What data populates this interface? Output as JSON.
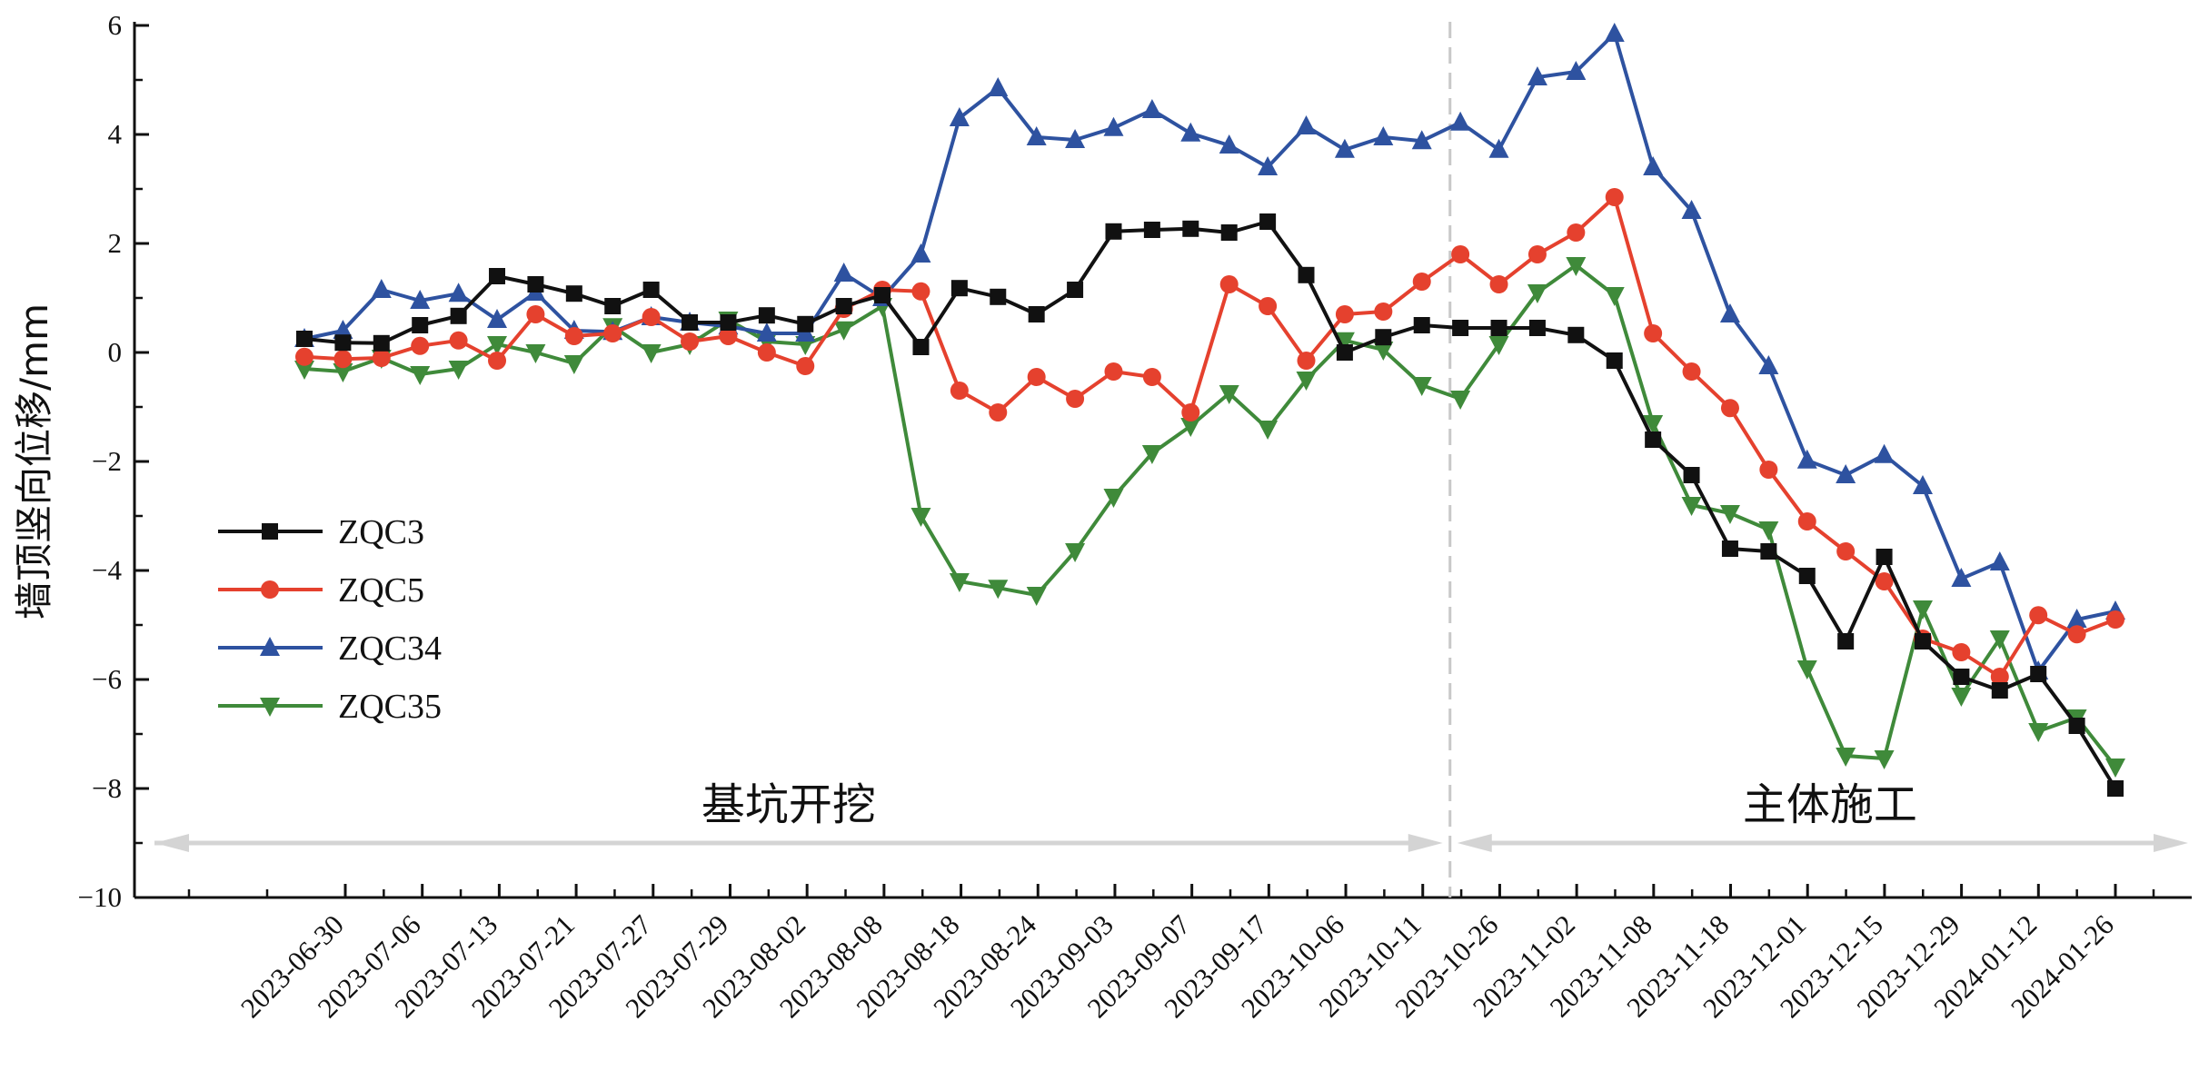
{
  "chart_data": {
    "type": "line",
    "ylabel": "墙顶竖向位移/mm",
    "ylim": [
      -10,
      6
    ],
    "y_ticks": [
      -10,
      -8,
      -6,
      -4,
      -2,
      0,
      2,
      4,
      6
    ],
    "x_tick_labels": [
      "2023-06-30",
      "2023-07-06",
      "2023-07-13",
      "2023-07-21",
      "2023-07-27",
      "2023-07-29",
      "2023-08-02",
      "2023-08-08",
      "2023-08-18",
      "2023-08-24",
      "2023-09-03",
      "2023-09-07",
      "2023-09-17",
      "2023-10-06",
      "2023-10-11",
      "2023-10-26",
      "2023-11-02",
      "2023-11-08",
      "2023-11-18",
      "2023-12-01",
      "2023-12-15",
      "2023-12-29",
      "2024-01-12",
      "2024-01-26"
    ],
    "phase_divider_after": "2023-10-11",
    "phases": [
      {
        "label": "基坑开挖"
      },
      {
        "label": "主体施工"
      }
    ],
    "legend_position": "left-middle",
    "series": [
      {
        "name": "ZQC3",
        "color": "#111111",
        "marker": "square",
        "values": [
          0.25,
          0.18,
          0.17,
          0.5,
          0.67,
          1.4,
          1.25,
          1.08,
          0.85,
          1.15,
          0.55,
          0.55,
          0.68,
          0.52,
          0.85,
          1.05,
          0.1,
          1.18,
          1.02,
          0.7,
          1.15,
          2.22,
          2.25,
          2.27,
          2.2,
          2.4,
          1.42,
          0.0,
          0.28,
          0.5,
          0.45,
          0.45,
          0.45,
          0.32,
          -0.15,
          -1.6,
          -2.25,
          -3.6,
          -3.65,
          -4.1,
          -5.3,
          -3.75,
          -5.3,
          -5.95,
          -6.2,
          -5.9,
          -6.85,
          -8.0
        ]
      },
      {
        "name": "ZQC5",
        "color": "#e5412e",
        "marker": "circle",
        "values": [
          -0.08,
          -0.12,
          -0.1,
          0.12,
          0.22,
          -0.15,
          0.7,
          0.3,
          0.35,
          0.65,
          0.2,
          0.3,
          0.0,
          -0.25,
          0.8,
          1.15,
          1.12,
          -0.7,
          -1.1,
          -0.45,
          -0.85,
          -0.35,
          -0.45,
          -1.1,
          1.25,
          0.85,
          -0.15,
          0.7,
          0.75,
          1.3,
          1.8,
          1.25,
          1.8,
          2.2,
          2.85,
          0.35,
          -0.35,
          -1.02,
          -2.15,
          -3.1,
          -3.65,
          -4.2,
          -5.25,
          -5.5,
          -5.95,
          -4.82,
          -5.17,
          -4.9
        ]
      },
      {
        "name": "ZQC34",
        "color": "#2e52a0",
        "marker": "triangle-up",
        "values": [
          0.25,
          0.4,
          1.15,
          0.95,
          1.08,
          0.6,
          1.1,
          0.4,
          0.38,
          0.65,
          0.55,
          0.48,
          0.35,
          0.35,
          1.45,
          1.0,
          1.8,
          4.3,
          4.85,
          3.95,
          3.9,
          4.12,
          4.45,
          4.02,
          3.8,
          3.4,
          4.15,
          3.72,
          3.95,
          3.88,
          4.22,
          3.72,
          5.05,
          5.15,
          5.85,
          3.4,
          2.6,
          0.7,
          -0.25,
          -1.98,
          -2.25,
          -1.88,
          -2.45,
          -4.15,
          -3.85,
          -5.85,
          -4.9,
          -4.75
        ]
      },
      {
        "name": "ZQC35",
        "color": "#3f8a3a",
        "marker": "triangle-down",
        "values": [
          -0.3,
          -0.35,
          -0.1,
          -0.4,
          -0.3,
          0.15,
          0.0,
          -0.2,
          0.48,
          0.0,
          0.15,
          0.6,
          0.2,
          0.15,
          0.42,
          0.85,
          -3.0,
          -4.2,
          -4.32,
          -4.45,
          -3.65,
          -2.65,
          -1.85,
          -1.35,
          -0.75,
          -1.4,
          -0.5,
          0.22,
          0.05,
          -0.6,
          -0.85,
          0.15,
          1.1,
          1.6,
          1.05,
          -1.3,
          -2.8,
          -2.95,
          -3.25,
          -5.8,
          -7.4,
          -7.45,
          -4.7,
          -6.3,
          -5.25,
          -6.95,
          -6.7,
          -7.6
        ]
      }
    ]
  }
}
